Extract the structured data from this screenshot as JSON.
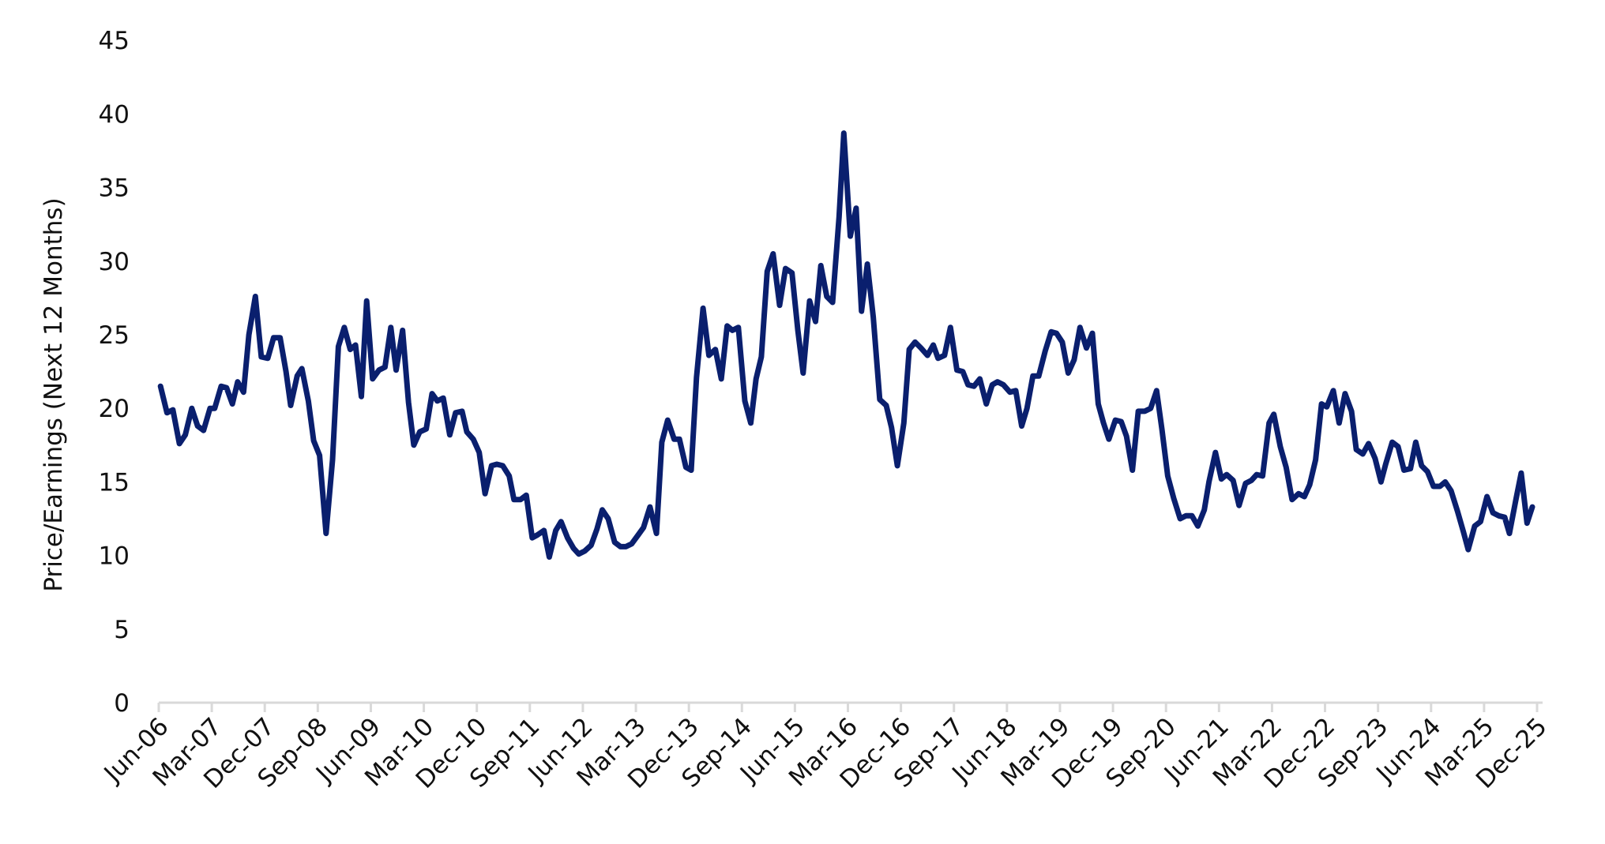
{
  "chart_data": {
    "type": "line",
    "title": "",
    "xlabel": "",
    "ylabel": "Price/Earnings (Next 12 Months)",
    "ylim": [
      0,
      45
    ],
    "yticks": [
      0,
      5,
      10,
      15,
      20,
      25,
      30,
      35,
      40,
      45
    ],
    "grid": false,
    "legend": null,
    "line_color": "#0a1f6e",
    "axis_color": "#d9d9d9",
    "x_tick_labels": [
      "Jun-06",
      "Mar-07",
      "Dec-07",
      "Sep-08",
      "Jun-09",
      "Mar-10",
      "Dec-10",
      "Sep-11",
      "Jun-12",
      "Mar-13",
      "Dec-13",
      "Sep-14",
      "Jun-15",
      "Mar-16",
      "Dec-16",
      "Sep-17",
      "Jun-18",
      "Mar-19",
      "Dec-19",
      "Sep-20",
      "Jun-21",
      "Mar-22",
      "Dec-22",
      "Sep-23",
      "Jun-24",
      "Mar-25",
      "Dec-25"
    ],
    "x_range_months": [
      0,
      234
    ],
    "series": [
      {
        "name": "Price/Earnings (Next 12 Months)",
        "points_month_offset_from_jun06": [
          0.3,
          1.4,
          2.4,
          3.5,
          4.5,
          5.6,
          6.6,
          7.6,
          8.7,
          9.5,
          10.6,
          11.5,
          12.5,
          13.4,
          14.4,
          15.3,
          16.4,
          17.4,
          18.5,
          19.5,
          20.6,
          21.6,
          22.4,
          23.5,
          24.3,
          25.4,
          26.3,
          27.3,
          28.4,
          29.5,
          30.5,
          31.5,
          32.5,
          33.4,
          34.4,
          35.3,
          36.3,
          37.4,
          38.4,
          39.4,
          40.3,
          41.4,
          42.4,
          43.3,
          44.3,
          45.4,
          46.4,
          47.3,
          48.3,
          49.4,
          50.4,
          51.5,
          52.3,
          53.4,
          54.4,
          55.4,
          56.5,
          57.4,
          58.4,
          59.5,
          60.3,
          61.4,
          62.4,
          63.4,
          64.3,
          65.4,
          66.3,
          67.4,
          68.3,
          69.4,
          70.4,
          71.3,
          72.3,
          73.4,
          74.4,
          75.3,
          76.3,
          77.4,
          78.4,
          79.3,
          80.3,
          81.4,
          82.3,
          83.4,
          84.5,
          85.4,
          86.4,
          87.5,
          88.4,
          89.5,
          90.4,
          91.3,
          92.4,
          93.4,
          94.5,
          95.5,
          96.5,
          97.4,
          98.4,
          99.5,
          100.5,
          101.4,
          102.3,
          103.3,
          104.3,
          105.4,
          106.4,
          107.5,
          108.5,
          109.4,
          110.5,
          111.5,
          112.4,
          113.4,
          114.4,
          115.5,
          116.3,
          117.4,
          118.4,
          119.3,
          120.3,
          121.3,
          122.4,
          123.5,
          124.4,
          125.4,
          126.5,
          127.4,
          128.4,
          129.4,
          130.5,
          131.5,
          132.3,
          133.4,
          134.4,
          135.5,
          136.5,
          137.4,
          138.4,
          139.4,
          140.5,
          141.5,
          142.4,
          143.4,
          144.5,
          145.5,
          146.5,
          147.4,
          148.4,
          149.4,
          150.5,
          151.5,
          152.4,
          153.4,
          154.4,
          155.4,
          156.4,
          157.5,
          158.5,
          159.5,
          160.4,
          161.3,
          162.4,
          163.4,
          164.3,
          165.3,
          166.3,
          167.4,
          168.4,
          169.4,
          170.3,
          171.3,
          172.3,
          173.4,
          174.4,
          175.4,
          176.4,
          177.5,
          178.3,
          179.4,
          180.4,
          181.3,
          182.4,
          183.4,
          184.5,
          185.5,
          186.4,
          187.4,
          188.5,
          189.3,
          190.4,
          191.4,
          192.4,
          193.5,
          194.5,
          195.4,
          196.4,
          197.4,
          198.3,
          199.4,
          200.4,
          201.4,
          202.5,
          203.3,
          204.4,
          205.4,
          206.5,
          207.5,
          208.3,
          209.4,
          210.4,
          211.4,
          212.5,
          213.4,
          214.4,
          215.4,
          216.4,
          217.5,
          218.4,
          219.4,
          220.5,
          221.5,
          222.3,
          223.4,
          224.4,
          225.5,
          226.5,
          227.5,
          228.5,
          229.3,
          230.4,
          231.3,
          232.3,
          233.2
        ],
        "values": [
          21.5,
          19.7,
          19.9,
          17.6,
          18.2,
          20.0,
          18.8,
          18.5,
          20.0,
          20.0,
          21.5,
          21.4,
          20.3,
          21.8,
          21.1,
          25.0,
          27.6,
          23.5,
          23.4,
          24.8,
          24.8,
          22.5,
          20.2,
          22.2,
          22.7,
          20.5,
          17.8,
          16.8,
          11.5,
          16.5,
          24.2,
          25.5,
          24.0,
          24.3,
          20.8,
          27.3,
          22.0,
          22.6,
          22.8,
          25.5,
          22.6,
          25.3,
          20.4,
          17.5,
          18.4,
          18.6,
          21.0,
          20.5,
          20.7,
          18.2,
          19.7,
          19.8,
          18.4,
          17.9,
          17.0,
          14.2,
          16.1,
          16.2,
          16.1,
          15.4,
          13.8,
          13.8,
          14.1,
          11.2,
          11.4,
          11.7,
          9.9,
          11.7,
          12.3,
          11.2,
          10.5,
          10.1,
          10.3,
          10.7,
          11.8,
          13.1,
          12.5,
          10.9,
          10.6,
          10.6,
          10.8,
          11.4,
          11.9,
          13.3,
          11.5,
          17.7,
          19.2,
          17.9,
          17.9,
          16.0,
          15.8,
          22.1,
          26.8,
          23.6,
          24.0,
          22.0,
          25.6,
          25.3,
          25.5,
          20.5,
          19.0,
          22.0,
          23.5,
          29.3,
          30.5,
          27.0,
          29.5,
          29.2,
          25.3,
          22.4,
          27.3,
          25.9,
          29.7,
          27.6,
          27.2,
          33.0,
          38.7,
          31.7,
          33.6,
          26.6,
          29.8,
          26.2,
          20.6,
          20.2,
          18.7,
          16.1,
          19.0,
          24.0,
          24.5,
          24.1,
          23.6,
          24.3,
          23.4,
          23.6,
          25.5,
          22.6,
          22.5,
          21.6,
          21.5,
          22.0,
          20.3,
          21.6,
          21.8,
          21.6,
          21.1,
          21.2,
          18.8,
          20.0,
          22.2,
          22.2,
          23.9,
          25.2,
          25.1,
          24.5,
          22.4,
          23.3,
          25.5,
          24.1,
          25.1,
          20.3,
          19.0,
          17.9,
          19.2,
          19.1,
          18.1,
          15.8,
          19.8,
          19.8,
          20.0,
          21.2,
          18.6,
          15.4,
          13.9,
          12.5,
          12.7,
          12.7,
          12.0,
          13.1,
          15.0,
          17.0,
          15.2,
          15.5,
          15.1,
          13.4,
          14.9,
          15.1,
          15.5,
          15.4,
          19.0,
          19.6,
          17.4,
          16.0,
          13.8,
          14.2,
          14.0,
          14.8,
          16.5,
          20.3,
          20.1,
          21.2,
          19.0,
          21.0,
          19.8,
          17.2,
          16.9,
          17.6,
          16.6,
          15.0,
          16.2,
          17.7,
          17.4,
          15.8,
          15.9,
          17.7,
          16.1,
          15.7,
          14.7,
          14.7,
          15.0,
          14.4,
          13.0,
          11.6,
          10.4,
          12.0,
          12.3,
          14.0,
          12.9,
          12.7,
          12.6,
          11.5,
          13.8,
          15.6,
          12.2,
          13.3,
          12.8
        ]
      }
    ]
  }
}
